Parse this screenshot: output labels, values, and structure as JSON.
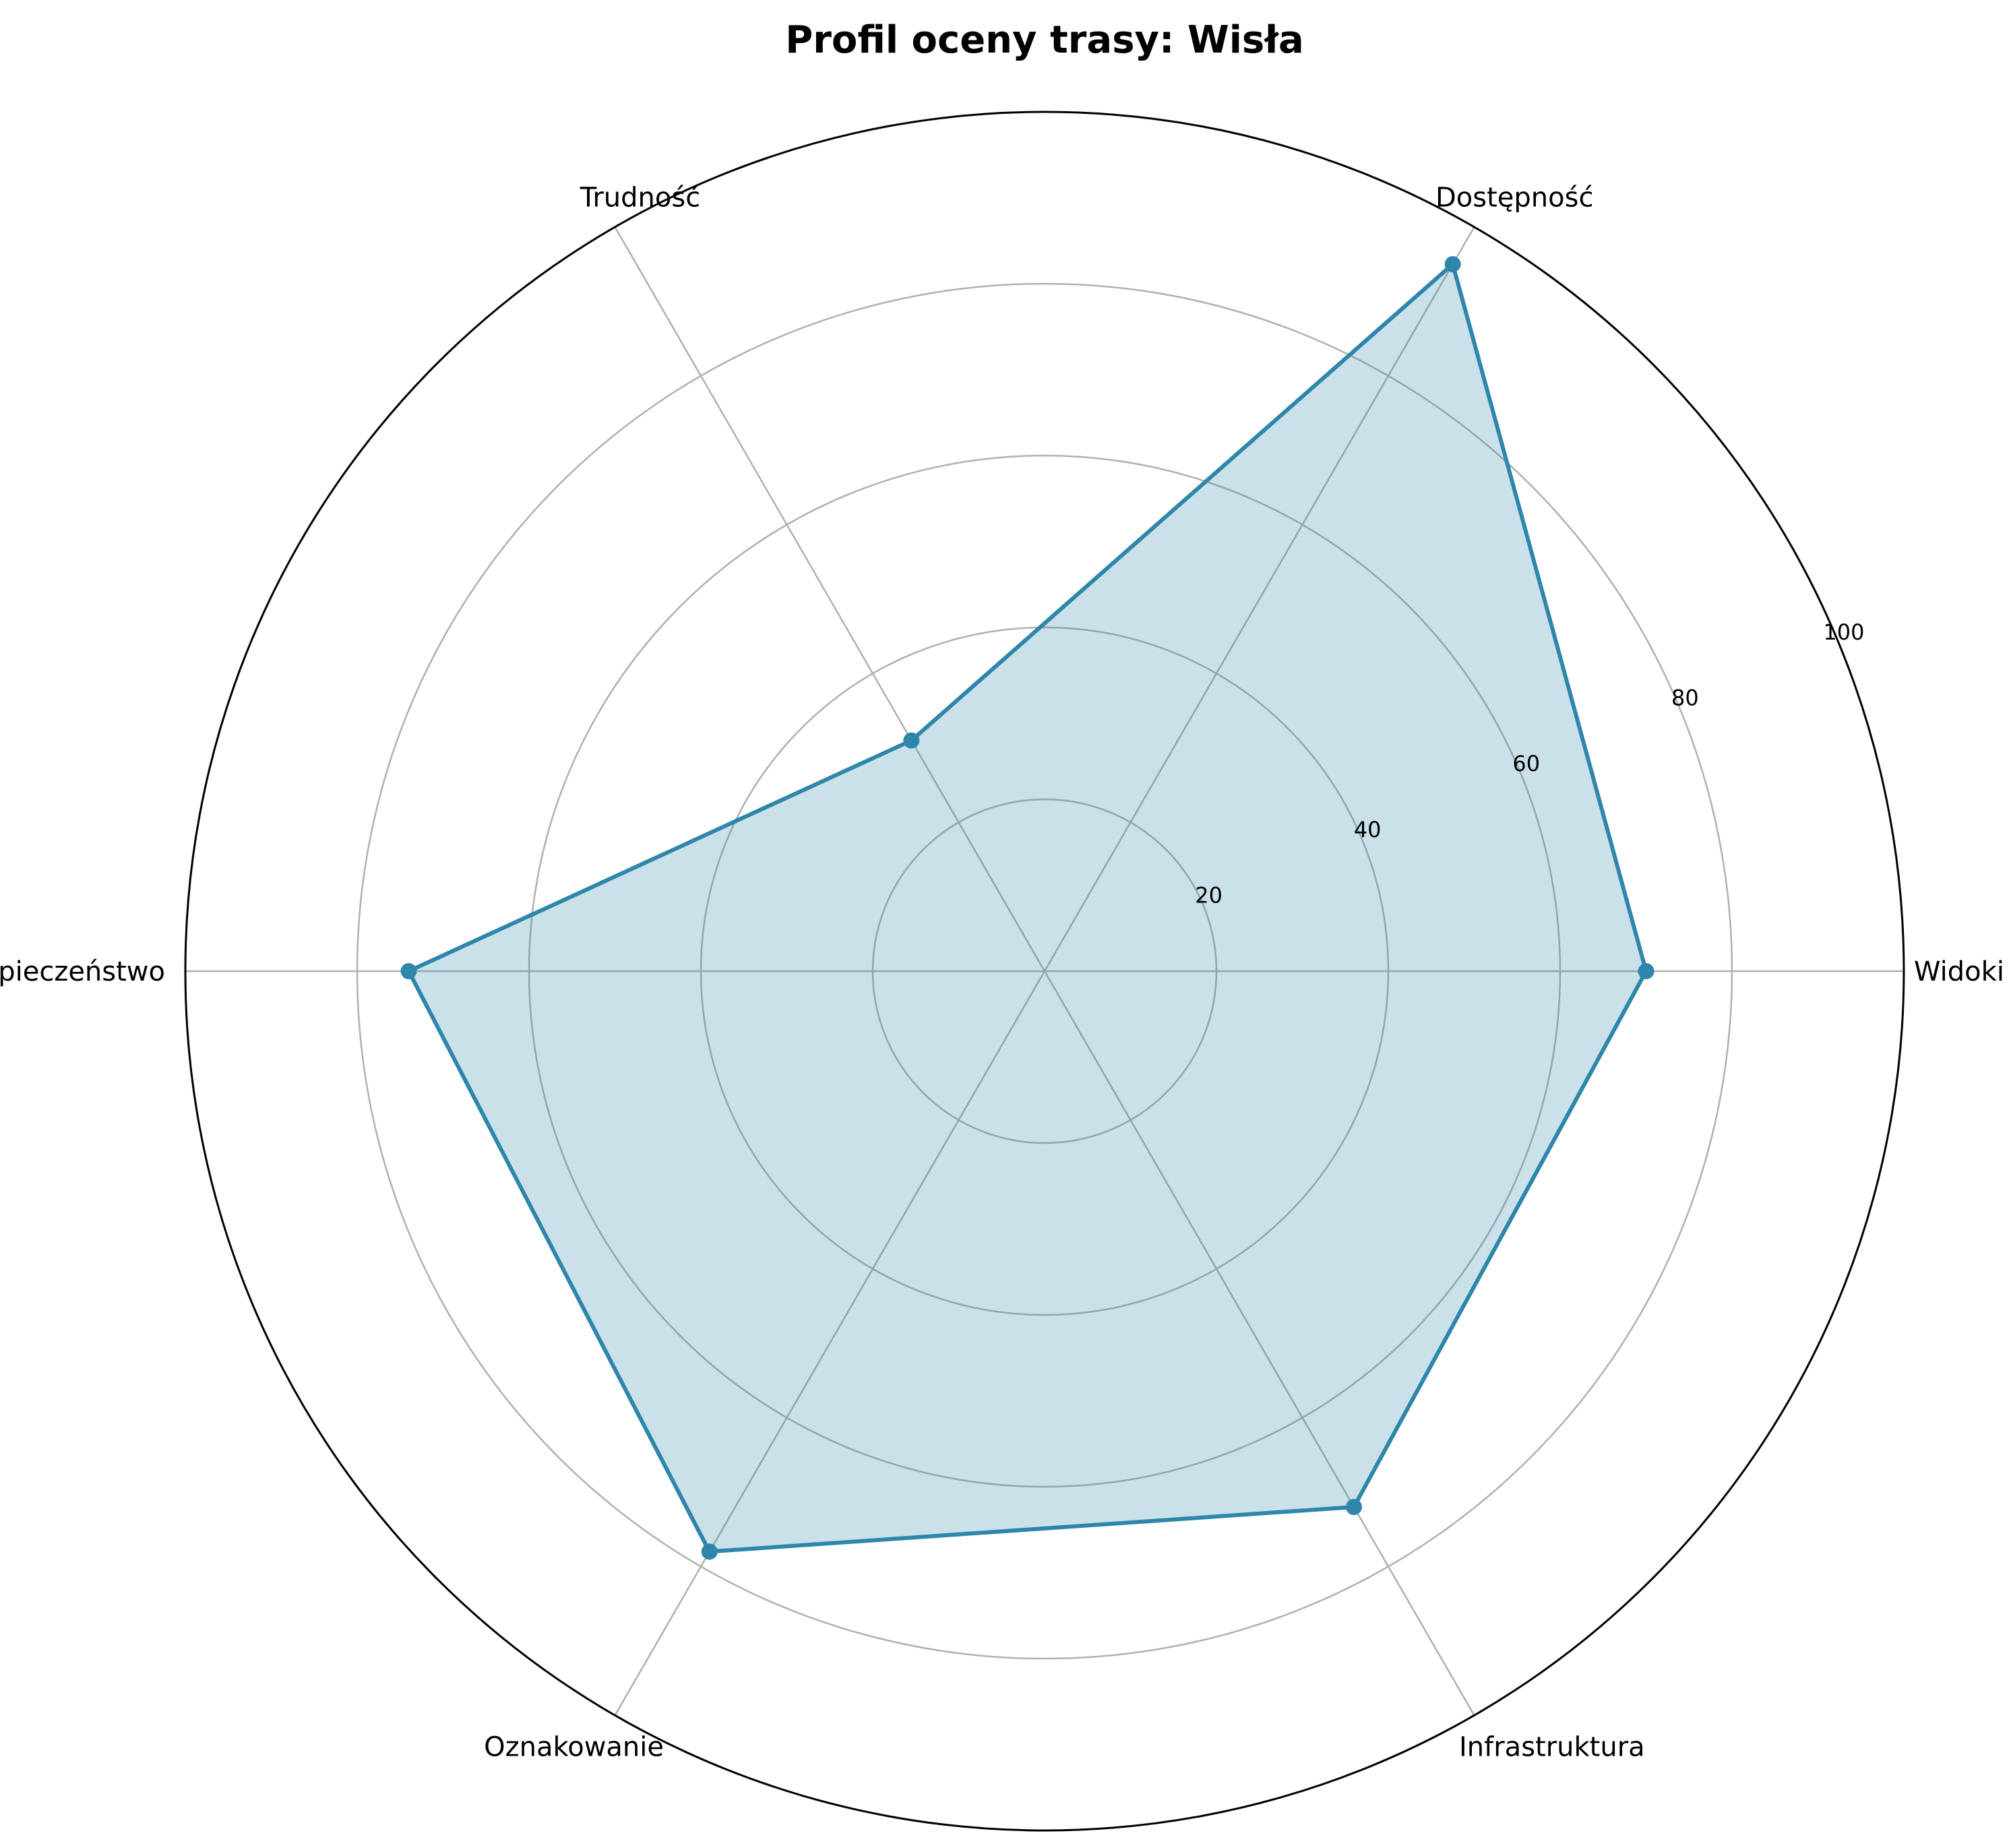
{
  "chart_data": {
    "type": "radar",
    "title": "Profil oceny trasy: Wisła",
    "categories": [
      "Widoki",
      "Dostępność",
      "Trudność",
      "Bezpieczeństwo",
      "Oznakowanie",
      "Infrastruktura"
    ],
    "series": [
      {
        "values": [
          70,
          95,
          31,
          74,
          78,
          72
        ]
      }
    ],
    "rlim": [
      0,
      100
    ],
    "rticks": [
      20,
      40,
      60,
      80,
      100
    ],
    "rtick_labels": [
      "20",
      "40",
      "60",
      "80",
      "100"
    ],
    "grid": true,
    "colors": {
      "line": "#2e86ab",
      "fill": "#2e86ab",
      "grid": "#b0b0b0",
      "frame": "#000000"
    }
  }
}
